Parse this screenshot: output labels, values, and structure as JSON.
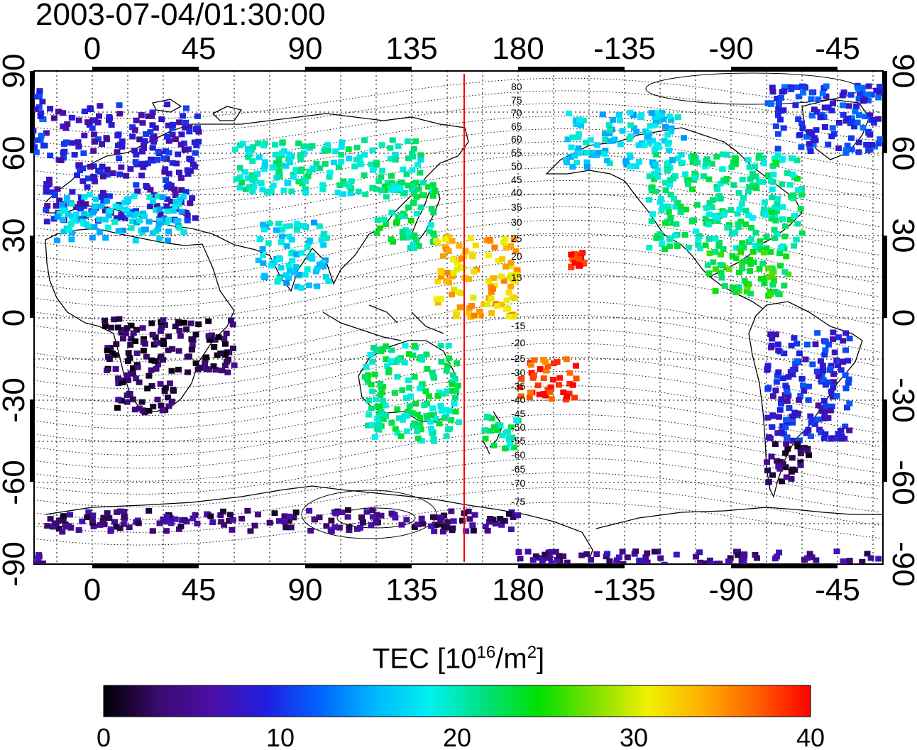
{
  "title": "2003-07-04/01:30:00",
  "axes": {
    "lon_labels": [
      "0",
      "45",
      "90",
      "135",
      "180",
      "-135",
      "-90",
      "-45"
    ],
    "lat_labels": [
      "90",
      "60",
      "30",
      "0",
      "-30",
      "-60",
      "-90"
    ]
  },
  "contour_labels": [
    "80",
    "75",
    "70",
    "65",
    "60",
    "55",
    "50",
    "45",
    "40",
    "35",
    "30",
    "25",
    "20",
    "15",
    "-15",
    "-20",
    "-25",
    "-30",
    "-35",
    "-40",
    "-45",
    "-50",
    "-55",
    "-60",
    "-65",
    "-70",
    "-75"
  ],
  "colorbar": {
    "title_main": "TEC  [10",
    "title_exp": "16",
    "title_mid": "/m",
    "title_exp2": "2",
    "title_end": "]",
    "ticks": [
      "0",
      "10",
      "20",
      "30",
      "40"
    ],
    "range": [
      0,
      40
    ],
    "colors": [
      "#000000",
      "#3a0a6e",
      "#4b0fa8",
      "#1f1fe0",
      "#0066ff",
      "#00b8ff",
      "#00f0f0",
      "#00e080",
      "#00e000",
      "#7de000",
      "#f0f000",
      "#ffb000",
      "#ff6000",
      "#ff0000"
    ]
  },
  "map": {
    "terminator_color": "#ff0000",
    "terminator_lon": 158,
    "tec_clusters": [
      {
        "region": "europe",
        "lon": [
          -20,
          45
        ],
        "lat": [
          35,
          78
        ],
        "tec": 8
      },
      {
        "region": "mediterranean",
        "lon": [
          -15,
          40
        ],
        "lat": [
          28,
          45
        ],
        "tec": 17
      },
      {
        "region": "north-america",
        "lon": [
          -125,
          -60
        ],
        "lat": [
          25,
          60
        ],
        "tec": 21
      },
      {
        "region": "alaska-canada",
        "lon": [
          -160,
          -110
        ],
        "lat": [
          55,
          75
        ],
        "tec": 17
      },
      {
        "region": "greenland",
        "lon": [
          -75,
          -20
        ],
        "lat": [
          60,
          85
        ],
        "tec": 10
      },
      {
        "region": "east-asia",
        "lon": [
          120,
          145
        ],
        "lat": [
          25,
          50
        ],
        "tec": 22
      },
      {
        "region": "central-america",
        "lon": [
          -100,
          -65
        ],
        "lat": [
          8,
          25
        ],
        "tec": 24
      },
      {
        "region": "australia",
        "lon": [
          115,
          155
        ],
        "lat": [
          -45,
          -10
        ],
        "tec": 21
      },
      {
        "region": "new-zealand",
        "lon": [
          165,
          180
        ],
        "lat": [
          -48,
          -35
        ],
        "tec": 21
      },
      {
        "region": "south-pacific",
        "lon": [
          -180,
          -155
        ],
        "lat": [
          -30,
          -15
        ],
        "tec": 38
      },
      {
        "region": "hawaii",
        "lon": [
          -158,
          -152
        ],
        "lat": [
          18,
          24
        ],
        "tec": 40
      },
      {
        "region": "south-america",
        "lon": [
          -75,
          -40
        ],
        "lat": [
          -45,
          -5
        ],
        "tec": 9
      },
      {
        "region": "patagonia",
        "lon": [
          -75,
          -55
        ],
        "lat": [
          -60,
          -45
        ],
        "tec": 3
      },
      {
        "region": "southern-africa",
        "lon": [
          10,
          35
        ],
        "lat": [
          -35,
          -20
        ],
        "tec": 3
      },
      {
        "region": "equatorial-africa",
        "lon": [
          5,
          60
        ],
        "lat": [
          -20,
          0
        ],
        "tec": 2
      },
      {
        "region": "antarctica",
        "lon": [
          -20,
          180
        ],
        "lat": [
          -78,
          -70
        ],
        "tec": 4
      },
      {
        "region": "antarctic-coast",
        "lon": [
          -180,
          -20
        ],
        "lat": [
          -90,
          -85
        ],
        "tec": 5
      },
      {
        "region": "south-asia",
        "lon": [
          70,
          100
        ],
        "lat": [
          10,
          35
        ],
        "tec": 17
      },
      {
        "region": "pacific-mid",
        "lon": [
          145,
          180
        ],
        "lat": [
          0,
          30
        ],
        "tec": 33
      },
      {
        "region": "siberia",
        "lon": [
          60,
          140
        ],
        "lat": [
          45,
          65
        ],
        "tec": 20
      }
    ]
  }
}
